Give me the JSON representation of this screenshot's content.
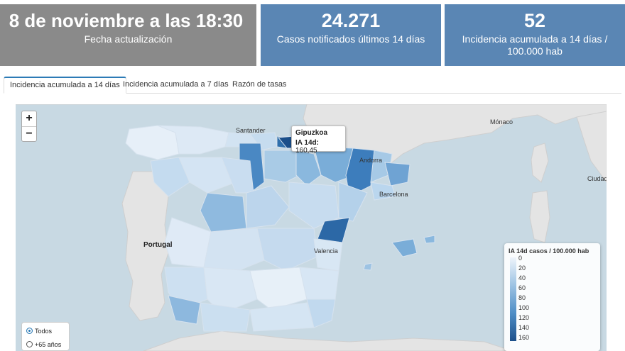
{
  "cards": {
    "update": {
      "value": "8 de noviembre a las 18:30",
      "label": "Fecha actualización"
    },
    "cases": {
      "value": "24.271",
      "label": "Casos notificados últimos 14 días"
    },
    "incidence": {
      "value": "52",
      "label": "Incidencia acumulada a 14 días / 100.000 hab"
    }
  },
  "tabs": [
    {
      "label": "Incidencia acumulada a 14 días",
      "active": true
    },
    {
      "label": "Incidencia acumulada a 7 días",
      "active": false
    },
    {
      "label": "Razón de tasas",
      "active": false
    }
  ],
  "map": {
    "zoom_in": "+",
    "zoom_out": "−",
    "place_labels": [
      "Santander",
      "Mónaco",
      "Portugal",
      "Andorra",
      "Ciudad",
      "Valencia",
      "Barcelona"
    ],
    "tooltip": {
      "region": "Gipuzkoa",
      "metric_label": "IA 14d:",
      "metric_value": "160,45"
    },
    "legend": {
      "title": "IA 14d casos / 100.000 hab",
      "ticks": [
        "0",
        "20",
        "40",
        "60",
        "80",
        "100",
        "120",
        "140",
        "160"
      ],
      "colors": [
        "#eef4fb",
        "#9dc3e3",
        "#4f8ec6",
        "#1b4f8a"
      ]
    },
    "filter": {
      "options": [
        "Todos",
        "+65 años"
      ],
      "selected": "Todos"
    }
  }
}
